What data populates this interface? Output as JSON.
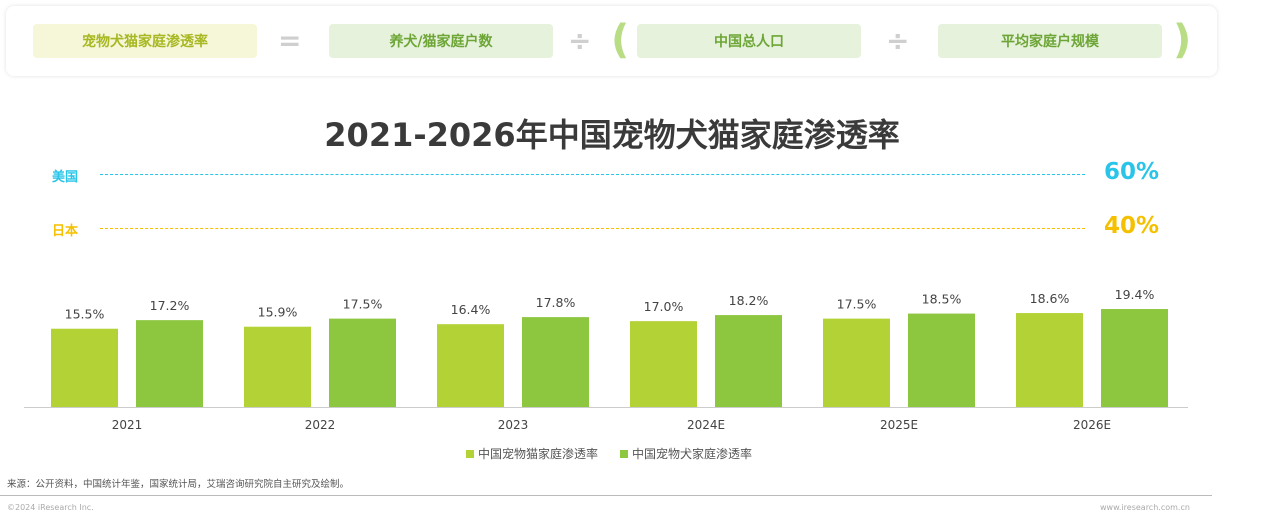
{
  "formula": {
    "result": "宠物犬猫家庭渗透率",
    "numerator": "养犬/猫家庭户数",
    "population": "中国总人口",
    "household_size": "平均家庭户规模",
    "equals_symbol": "=",
    "divide_symbol": "÷",
    "open_paren": "(",
    "close_paren": ")"
  },
  "chart_data": {
    "type": "bar",
    "title": "2021-2026年中国宠物犬猫家庭渗透率",
    "categories": [
      "2021",
      "2022",
      "2023",
      "2024E",
      "2025E",
      "2026E"
    ],
    "series": [
      {
        "name": "中国宠物猫家庭渗透率",
        "values": [
          15.5,
          15.9,
          16.4,
          17.0,
          17.5,
          18.6
        ],
        "labels": [
          "15.5%",
          "15.9%",
          "16.4%",
          "17.0%",
          "17.5%",
          "18.6%"
        ],
        "color": "#b2d235"
      },
      {
        "name": "中国宠物犬家庭渗透率",
        "values": [
          17.2,
          17.5,
          17.8,
          18.2,
          18.5,
          19.4
        ],
        "labels": [
          "17.2%",
          "17.5%",
          "17.8%",
          "18.2%",
          "18.5%",
          "19.4%"
        ],
        "color": "#8dc63f"
      }
    ],
    "reference_lines": [
      {
        "label": "美国",
        "value": 60,
        "value_label": "60%",
        "color": "#29c4e8"
      },
      {
        "label": "日本",
        "value": 40,
        "value_label": "40%",
        "color": "#f5c000"
      }
    ],
    "legend_position": "bottom",
    "grid": false
  },
  "footer": {
    "source": "来源：公开资料，中国统计年鉴，国家统计局，艾瑞咨询研究院自主研究及绘制。",
    "copyright": "©2024 iResearch Inc.",
    "website": "www.iresearch.com.cn"
  }
}
